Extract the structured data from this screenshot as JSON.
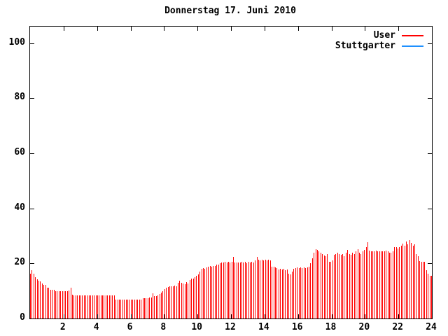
{
  "title": "Donnerstag 17. Juni 2010",
  "colors": {
    "background": "#ffffff",
    "axis": "#000000",
    "user_series": "#ff0000",
    "stuttgarter_series": "#1e90ff"
  },
  "legend": {
    "position": "top-right",
    "items": [
      {
        "label": "User",
        "color": "#ff0000"
      },
      {
        "label": "Stuttgarter",
        "color": "#1e90ff"
      }
    ]
  },
  "chart_data": {
    "type": "bar",
    "title": "Donnerstag 17. Juni 2010",
    "xlabel": "",
    "ylabel": "",
    "xlim": [
      0,
      24
    ],
    "ylim": [
      0,
      106
    ],
    "x_ticks": [
      2,
      4,
      6,
      8,
      10,
      12,
      14,
      16,
      18,
      20,
      22,
      24
    ],
    "y_ticks": [
      0,
      20,
      40,
      60,
      80,
      100
    ],
    "grid": false,
    "x_unit": "hour of day",
    "x_start": 0.0,
    "x_step": 0.1,
    "series": [
      {
        "name": "User",
        "color": "#ff0000",
        "style": "impulses",
        "values": [
          16.2,
          17.5,
          16.2,
          15.1,
          14.3,
          13.8,
          13.4,
          12.7,
          12.1,
          12.1,
          11.3,
          11.3,
          10.4,
          10.4,
          10.4,
          10.0,
          9.8,
          9.8,
          10.0,
          9.8,
          10.0,
          9.8,
          9.8,
          10.2,
          11.2,
          8.7,
          8.4,
          8.4,
          8.5,
          8.4,
          8.4,
          8.4,
          8.3,
          8.4,
          8.4,
          8.5,
          8.4,
          8.4,
          8.3,
          8.4,
          8.4,
          8.4,
          8.5,
          8.4,
          8.4,
          8.3,
          8.4,
          8.4,
          8.4,
          8.3,
          8.4,
          7.0,
          6.9,
          6.9,
          6.8,
          6.9,
          6.9,
          6.8,
          6.9,
          6.9,
          6.9,
          6.8,
          6.9,
          6.9,
          6.8,
          6.9,
          6.9,
          7.4,
          7.4,
          7.4,
          7.4,
          7.6,
          7.6,
          9.2,
          8.2,
          8.2,
          8.4,
          9.0,
          9.4,
          10.0,
          10.6,
          11.2,
          11.5,
          11.7,
          11.7,
          11.7,
          12.0,
          11.7,
          13.0,
          13.7,
          13.0,
          12.7,
          12.5,
          13.3,
          12.7,
          14.0,
          14.5,
          14.5,
          15.0,
          15.5,
          16.0,
          17.0,
          18.0,
          18.2,
          18.0,
          18.5,
          18.7,
          19.0,
          18.7,
          19.0,
          19.2,
          19.5,
          19.7,
          20.0,
          20.3,
          20.3,
          20.5,
          20.3,
          20.5,
          20.3,
          20.5,
          22.4,
          20.3,
          20.3,
          20.3,
          20.3,
          20.5,
          20.3,
          20.5,
          20.2,
          20.5,
          20.3,
          20.6,
          20.4,
          21.0,
          22.4,
          21.4,
          21.0,
          21.4,
          21.2,
          21.4,
          21.0,
          21.4,
          21.0,
          18.8,
          18.8,
          18.5,
          18.3,
          17.8,
          18.0,
          17.8,
          18.0,
          17.6,
          17.8,
          16.3,
          16.0,
          17.0,
          18.0,
          18.3,
          18.5,
          18.3,
          18.5,
          18.3,
          18.5,
          18.3,
          18.5,
          18.8,
          20.0,
          22.0,
          24.0,
          25.2,
          25.0,
          24.5,
          24.0,
          23.5,
          23.0,
          22.7,
          23.5,
          20.6,
          20.6,
          21.0,
          23.2,
          23.5,
          24.0,
          23.5,
          23.2,
          23.5,
          22.7,
          24.0,
          25.0,
          23.5,
          23.2,
          24.0,
          23.5,
          24.5,
          25.2,
          24.0,
          23.4,
          24.5,
          25.0,
          26.0,
          27.8,
          24.7,
          24.5,
          24.3,
          24.5,
          24.7,
          24.5,
          24.3,
          24.5,
          24.3,
          24.5,
          24.7,
          24.5,
          23.8,
          23.8,
          24.5,
          25.9,
          25.9,
          25.5,
          26.0,
          26.5,
          27.2,
          26.5,
          28.0,
          27.0,
          28.6,
          27.5,
          26.5,
          27.0,
          23.4,
          22.7,
          20.9,
          20.6,
          20.6,
          20.6,
          17.6,
          16.3,
          15.5,
          15.5
        ]
      },
      {
        "name": "Stuttgarter",
        "color": "#1e90ff",
        "style": "lines",
        "values": []
      }
    ]
  }
}
